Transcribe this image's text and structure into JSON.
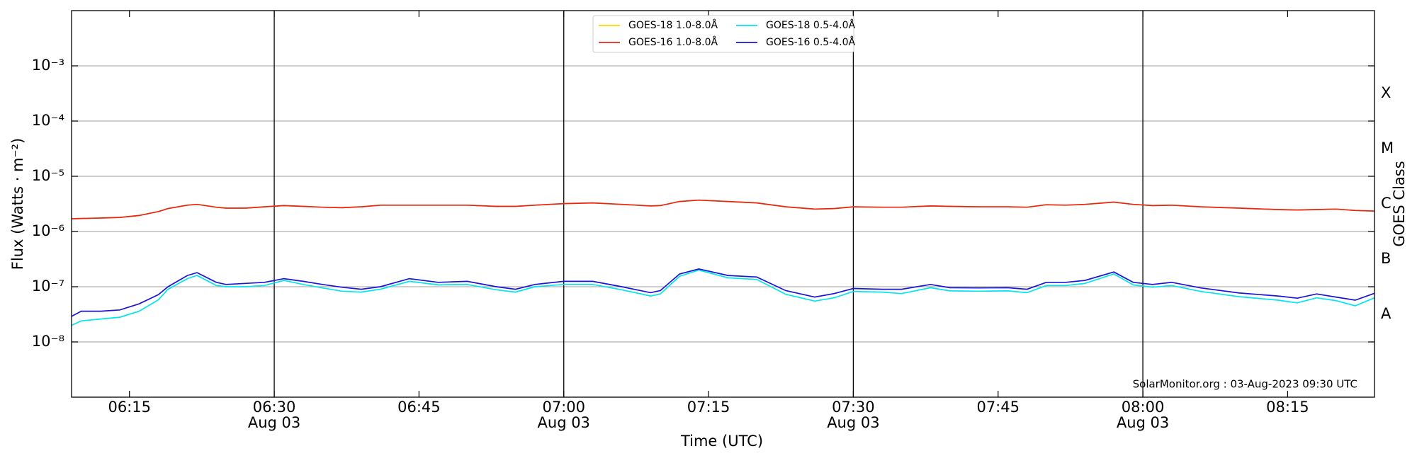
{
  "chart_data": {
    "type": "line",
    "x_label": "Time (UTC)",
    "y_label": "Flux (Watts · m⁻²)",
    "y2_label": "GOES Class",
    "annotation": "SolarMonitor.org : 03-Aug-2023 09:30 UTC",
    "log_y": true,
    "grid": true,
    "legend": "upper center",
    "ylim": [
      1e-09,
      0.01
    ],
    "yticks": [
      {
        "value": 1e-08,
        "label": "10⁻⁸"
      },
      {
        "value": 1e-07,
        "label": "10⁻⁷"
      },
      {
        "value": 1e-06,
        "label": "10⁻⁶"
      },
      {
        "value": 1e-05,
        "label": "10⁻⁵"
      },
      {
        "value": 0.0001,
        "label": "10⁻⁴"
      },
      {
        "value": 0.001,
        "label": "10⁻³"
      }
    ],
    "classes": [
      {
        "label": "A",
        "value": 1e-08
      },
      {
        "label": "B",
        "value": 1e-07
      },
      {
        "label": "C",
        "value": 1e-06
      },
      {
        "label": "M",
        "value": 1e-05
      },
      {
        "label": "X",
        "value": 0.0001
      }
    ],
    "xlim": [
      "06:09",
      "08:24"
    ],
    "xticks": [
      "06:15",
      {
        "value": "06:30",
        "label": "06:30",
        "date": "Aug 03"
      },
      "06:45",
      {
        "value": "07:00",
        "label": "07:00",
        "date": "Aug 03"
      },
      "07:15",
      {
        "value": "07:30",
        "label": "07:30",
        "date": "Aug 03"
      },
      "07:45",
      {
        "value": "08:00",
        "label": "08:00",
        "date": "Aug 03"
      },
      "08:15"
    ],
    "vlines": [
      "06:30",
      "07:00",
      "07:30",
      "08:00"
    ],
    "x": [
      "06:09",
      "06:10",
      "06:12",
      "06:14",
      "06:16",
      "06:18",
      "06:19",
      "06:21",
      "06:22",
      "06:24",
      "06:25",
      "06:27",
      "06:29",
      "06:31",
      "06:33",
      "06:35",
      "06:37",
      "06:39",
      "06:41",
      "06:44",
      "06:47",
      "06:50",
      "06:53",
      "06:55",
      "06:57",
      "07:00",
      "07:03",
      "07:06",
      "07:09",
      "07:10",
      "07:12",
      "07:14",
      "07:17",
      "07:20",
      "07:23",
      "07:26",
      "07:28",
      "07:30",
      "07:33",
      "07:35",
      "07:38",
      "07:40",
      "07:43",
      "07:46",
      "07:48",
      "07:50",
      "07:52",
      "07:54",
      "07:57",
      "07:59",
      "08:01",
      "08:03",
      "08:06",
      "08:10",
      "08:14",
      "08:16",
      "08:18",
      "08:20",
      "08:22",
      "08:24"
    ],
    "series": [
      {
        "name": "GOES-18 1.0-8.0Å",
        "color": "#ffd700",
        "values": [
          1.7e-06,
          1.72e-06,
          1.75e-06,
          1.8e-06,
          1.95e-06,
          2.3e-06,
          2.6e-06,
          3e-06,
          3.1e-06,
          2.75e-06,
          2.65e-06,
          2.65e-06,
          2.8e-06,
          2.95e-06,
          2.85e-06,
          2.75e-06,
          2.7e-06,
          2.8e-06,
          3e-06,
          3e-06,
          3e-06,
          3e-06,
          2.85e-06,
          2.85e-06,
          3e-06,
          3.2e-06,
          3.3e-06,
          3.1e-06,
          2.9e-06,
          2.95e-06,
          3.5e-06,
          3.7e-06,
          3.5e-06,
          3.3e-06,
          2.8e-06,
          2.55e-06,
          2.6e-06,
          2.8e-06,
          2.75e-06,
          2.75e-06,
          2.9e-06,
          2.85e-06,
          2.8e-06,
          2.8e-06,
          2.75e-06,
          3.05e-06,
          3e-06,
          3.1e-06,
          3.4e-06,
          3.1e-06,
          2.95e-06,
          3e-06,
          2.8e-06,
          2.65e-06,
          2.5e-06,
          2.45e-06,
          2.5e-06,
          2.55e-06,
          2.4e-06,
          2.35e-06
        ]
      },
      {
        "name": "GOES-16 1.0-8.0Å",
        "color": "#e8241a",
        "values": [
          1.7e-06,
          1.72e-06,
          1.75e-06,
          1.8e-06,
          1.95e-06,
          2.3e-06,
          2.6e-06,
          3e-06,
          3.1e-06,
          2.75e-06,
          2.65e-06,
          2.65e-06,
          2.8e-06,
          2.95e-06,
          2.85e-06,
          2.75e-06,
          2.7e-06,
          2.8e-06,
          3e-06,
          3e-06,
          3e-06,
          3e-06,
          2.85e-06,
          2.85e-06,
          3e-06,
          3.2e-06,
          3.3e-06,
          3.1e-06,
          2.9e-06,
          2.95e-06,
          3.5e-06,
          3.7e-06,
          3.5e-06,
          3.3e-06,
          2.8e-06,
          2.55e-06,
          2.6e-06,
          2.8e-06,
          2.75e-06,
          2.75e-06,
          2.9e-06,
          2.85e-06,
          2.8e-06,
          2.8e-06,
          2.75e-06,
          3.05e-06,
          3e-06,
          3.1e-06,
          3.4e-06,
          3.1e-06,
          2.95e-06,
          3e-06,
          2.8e-06,
          2.65e-06,
          2.5e-06,
          2.45e-06,
          2.5e-06,
          2.55e-06,
          2.4e-06,
          2.35e-06
        ]
      },
      {
        "name": "GOES-18 0.5-4.0Å",
        "color": "#00e5ee",
        "values": [
          2e-08,
          2.4e-08,
          2.6e-08,
          2.8e-08,
          3.6e-08,
          5.8e-08,
          9e-08,
          1.4e-07,
          1.6e-07,
          1.05e-07,
          1e-07,
          1e-07,
          1.05e-07,
          1.3e-07,
          1.1e-07,
          9.5e-08,
          8.3e-08,
          8e-08,
          9e-08,
          1.25e-07,
          1.08e-07,
          1.1e-07,
          8.8e-08,
          8e-08,
          1e-07,
          1.1e-07,
          1.1e-07,
          8.8e-08,
          6.8e-08,
          7.4e-08,
          1.55e-07,
          2e-07,
          1.45e-07,
          1.35e-07,
          7.3e-08,
          5.5e-08,
          6.3e-08,
          8.2e-08,
          8e-08,
          7.5e-08,
          9.6e-08,
          8.4e-08,
          8.3e-08,
          8.4e-08,
          7.8e-08,
          1.05e-07,
          1.05e-07,
          1.15e-07,
          1.7e-07,
          1.08e-07,
          9.8e-08,
          1.05e-07,
          8.2e-08,
          6.6e-08,
          5.7e-08,
          5.1e-08,
          6.3e-08,
          5.6e-08,
          4.5e-08,
          6.3e-08
        ]
      },
      {
        "name": "GOES-16 0.5-4.0Å",
        "color": "#1a14d6",
        "values": [
          2.9e-08,
          3.6e-08,
          3.6e-08,
          3.8e-08,
          4.9e-08,
          7.2e-08,
          1e-07,
          1.6e-07,
          1.8e-07,
          1.2e-07,
          1.1e-07,
          1.15e-07,
          1.2e-07,
          1.4e-07,
          1.25e-07,
          1.1e-07,
          9.8e-08,
          9e-08,
          1e-07,
          1.4e-07,
          1.2e-07,
          1.25e-07,
          1e-07,
          9e-08,
          1.1e-07,
          1.25e-07,
          1.25e-07,
          1e-07,
          7.8e-08,
          8.5e-08,
          1.7e-07,
          2.1e-07,
          1.6e-07,
          1.5e-07,
          8.5e-08,
          6.5e-08,
          7.5e-08,
          9.3e-08,
          9e-08,
          9e-08,
          1.1e-07,
          9.6e-08,
          9.5e-08,
          9.6e-08,
          9e-08,
          1.2e-07,
          1.2e-07,
          1.3e-07,
          1.85e-07,
          1.2e-07,
          1.1e-07,
          1.2e-07,
          9.5e-08,
          7.7e-08,
          6.8e-08,
          6.2e-08,
          7.4e-08,
          6.5e-08,
          5.7e-08,
          7.6e-08
        ]
      }
    ]
  }
}
